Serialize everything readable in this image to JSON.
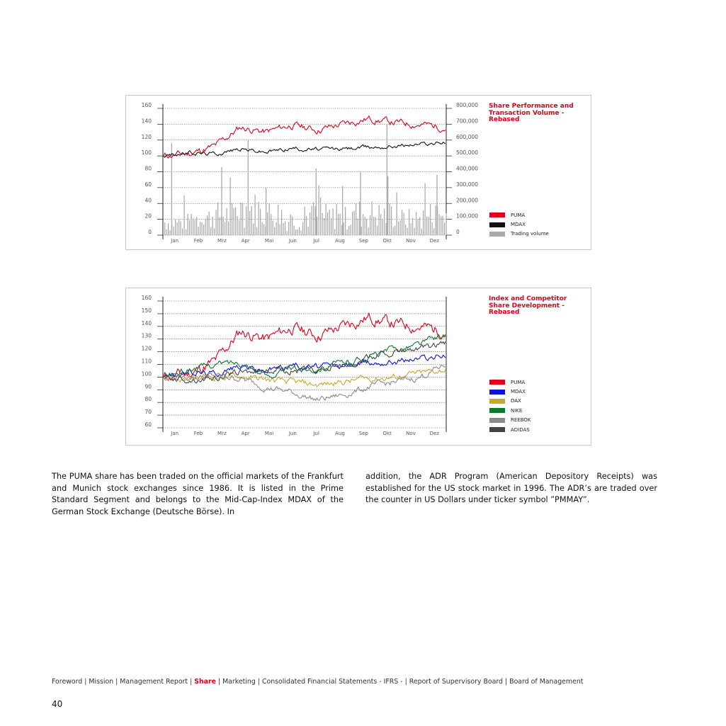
{
  "chart_data": [
    {
      "type": "line",
      "title": "Share Performance and Transaction Volume - Rebased",
      "categories": [
        "Jan",
        "Feb",
        "Mrz",
        "Apr",
        "Mai",
        "Jun",
        "Jul",
        "Aug",
        "Sep",
        "Okt",
        "Nov",
        "Dez"
      ],
      "y_ticks": [
        "0",
        "20",
        "40",
        "60",
        "80",
        "100",
        "120",
        "140",
        "160"
      ],
      "y2_ticks": [
        "0",
        "100,000",
        "200,000",
        "300,000",
        "400,000",
        "500,000",
        "600,000",
        "700,000",
        "800,000"
      ],
      "ylim": [
        0,
        160
      ],
      "y2lim": [
        0,
        800000
      ],
      "grid": true,
      "legend_placement": "right",
      "series": [
        {
          "name": "PUMA",
          "color": "#e2001a",
          "type": "line",
          "values": [
            100,
            103,
            112,
            136,
            130,
            139,
            133,
            140,
            147,
            142,
            140,
            136
          ]
        },
        {
          "name": "MDAX",
          "color": "#111111",
          "type": "line",
          "values": [
            100,
            104,
            103,
            109,
            105,
            110,
            108,
            109,
            111,
            113,
            115,
            117
          ]
        },
        {
          "name": "Trading volume",
          "color": "#aaaaaa",
          "type": "bar",
          "values": [
            90000,
            120000,
            140000,
            180000,
            150000,
            100000,
            130000,
            120000,
            150000,
            140000,
            110000,
            140000
          ],
          "peaks": [
            {
              "month": "Jan",
              "value": 580000
            },
            {
              "month": "Mrz",
              "value": 430000
            },
            {
              "month": "Apr",
              "value": 600000
            },
            {
              "month": "Mai",
              "value": 300000
            },
            {
              "month": "Jul",
              "value": 420000
            },
            {
              "month": "Aug",
              "value": 310000
            },
            {
              "month": "Sep",
              "value": 400000
            },
            {
              "month": "Okt",
              "value": 700000
            },
            {
              "month": "Dez",
              "value": 380000
            }
          ]
        }
      ]
    },
    {
      "type": "line",
      "title": "Index and Competitor Share Development - Rebased",
      "categories": [
        "Jan",
        "Feb",
        "Mrz",
        "Apr",
        "Mai",
        "Jun",
        "Jul",
        "Aug",
        "Sep",
        "Okt",
        "Nov",
        "Dez"
      ],
      "y_ticks": [
        "60",
        "70",
        "80",
        "90",
        "100",
        "110",
        "120",
        "130",
        "140",
        "150",
        "160"
      ],
      "ylim": [
        60,
        160
      ],
      "grid": true,
      "legend_placement": "right",
      "series": [
        {
          "name": "PUMA",
          "color": "#e2001a",
          "values": [
            100,
            103,
            112,
            136,
            130,
            139,
            133,
            140,
            147,
            142,
            140,
            136
          ]
        },
        {
          "name": "MDAX",
          "color": "#0a14d8",
          "values": [
            100,
            104,
            103,
            109,
            105,
            110,
            108,
            109,
            111,
            113,
            115,
            117
          ]
        },
        {
          "name": "DAX",
          "color": "#c9a92a",
          "values": [
            100,
            98,
            100,
            101,
            98,
            96,
            94,
            96,
            99,
            100,
            103,
            106
          ]
        },
        {
          "name": "NIKE",
          "color": "#0e7a2c",
          "values": [
            100,
            106,
            110,
            112,
            101,
            106,
            107,
            111,
            116,
            122,
            126,
            134
          ]
        },
        {
          "name": "REEBOK",
          "color": "#8a8a8a",
          "values": [
            100,
            100,
            101,
            99,
            92,
            88,
            82,
            86,
            92,
            96,
            100,
            110
          ]
        },
        {
          "name": "ADIDAS",
          "color": "#444444",
          "values": [
            100,
            98,
            99,
            104,
            105,
            106,
            105,
            109,
            115,
            120,
            122,
            126
          ]
        }
      ]
    }
  ],
  "text": {
    "left": "The PUMA share has been traded on the official markets of the Frankfurt and Munich stock exchanges since 1986. It is listed in the Prime Standard Segment and belongs to the Mid-Cap-Index MDAX of the German Stock Exchange (Deutsche Börse). In",
    "right": "addition, the ADR Program (American Depository Receipts) was established for the US stock market in 1996. The ADR’s are traded over the counter in US Dollars under ticker symbol ”PMMAY”."
  },
  "footer": {
    "items": [
      "Foreword",
      "Mission",
      "Management Report",
      "Share",
      "Marketing",
      "Consolidated Financial Statements - IFRS -",
      "Report of Supervisory Board",
      "Board of Management"
    ],
    "active": "Share"
  },
  "page_number": "40"
}
